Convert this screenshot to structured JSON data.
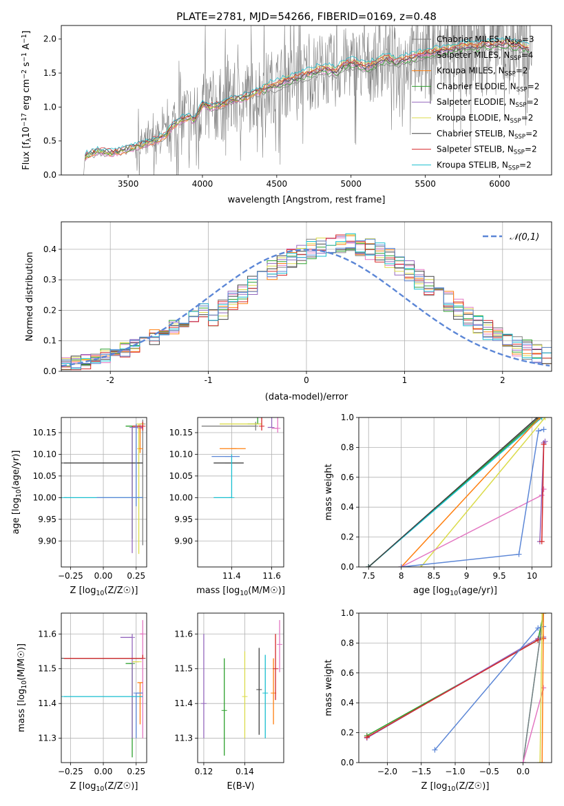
{
  "figure_title": "PLATE=2781, MJD=54266, FIBERID=0169, z=0.48",
  "series_styles": [
    {
      "name": "Chabrier MILES, N$_{SSP}$=3",
      "color": "#7f7f7f"
    },
    {
      "name": "Salpeter MILES, N$_{SSP}$=4",
      "color": "#e377c2"
    },
    {
      "name": "Kroupa MILES, N$_{SSP}$=2",
      "color": "#ff7f0e"
    },
    {
      "name": "Chabrier ELODIE, N$_{SSP}$=2",
      "color": "#2ca02c"
    },
    {
      "name": "Salpeter ELODIE, N$_{SSP}$=2",
      "color": "#9467bd"
    },
    {
      "name": "Kroupa ELODIE, N$_{SSP}$=2",
      "color": "#dbdb4a"
    },
    {
      "name": "Chabrier STELIB, N$_{SSP}$=2",
      "color": "#404040"
    },
    {
      "name": "Salpeter STELIB, N$_{SSP}$=2",
      "color": "#d62728"
    },
    {
      "name": "Kroupa STELIB, N$_{SSP}$=2",
      "color": "#17becf"
    }
  ],
  "chart_data": [
    {
      "id": "spectrum",
      "type": "line",
      "title": "PLATE=2781, MJD=54266, FIBERID=0169, z=0.48",
      "xlabel": "wavelength [Angstrom, rest frame]",
      "ylabel": "Flux [f_λ10^-17 erg cm^-2 s^-1 A^-1]",
      "xlim": [
        3050,
        6350
      ],
      "ylim": [
        0,
        2.2
      ],
      "xticks": [
        3500,
        4000,
        4500,
        5000,
        5500,
        6000
      ],
      "yticks": [
        0.0,
        0.5,
        1.0,
        1.5,
        2.0
      ],
      "legend_loc": "right",
      "legend": [
        "Chabrier MILES, N_SSP=3",
        "Salpeter MILES, N_SSP=4",
        "Kroupa MILES, N_SSP=2",
        "Chabrier ELODIE, N_SSP=2",
        "Salpeter ELODIE, N_SSP=2",
        "Kroupa ELODIE, N_SSP=2",
        "Chabrier STELIB, N_SSP=2",
        "Salpeter STELIB, N_SSP=2",
        "Kroupa STELIB, N_SSP=2"
      ],
      "model_continuum": {
        "x": [
          3200,
          3210,
          3300,
          3400,
          3500,
          3550,
          3600,
          3650,
          3700,
          3750,
          3800,
          3850,
          3900,
          3950,
          4000,
          4050,
          4100,
          4150,
          4200,
          4250,
          4300,
          4350,
          4400,
          4450,
          4500,
          4550,
          4600,
          4650,
          4700,
          4750,
          4800,
          4850,
          4900,
          4950,
          5000,
          5050,
          5100,
          5150,
          5200,
          5250,
          5300,
          5350,
          5400,
          5450,
          5500,
          5550,
          5600,
          5650,
          5700,
          5750,
          5800,
          5850,
          5900,
          5950,
          6000,
          6050,
          6100,
          6150,
          6200
        ],
        "y": [
          0.0,
          0.28,
          0.35,
          0.32,
          0.38,
          0.42,
          0.45,
          0.48,
          0.52,
          0.58,
          0.72,
          0.8,
          0.85,
          0.8,
          1.05,
          1.0,
          1.02,
          1.05,
          1.1,
          1.12,
          1.15,
          1.2,
          1.25,
          1.3,
          1.32,
          1.38,
          1.4,
          1.45,
          1.48,
          1.52,
          1.55,
          1.55,
          1.52,
          1.62,
          1.65,
          1.62,
          1.58,
          1.62,
          1.68,
          1.72,
          1.65,
          1.7,
          1.72,
          1.75,
          1.78,
          1.8,
          1.82,
          1.84,
          1.86,
          1.88,
          1.9,
          1.88,
          1.92,
          1.9,
          1.92,
          1.94,
          1.9,
          1.88,
          1.85
        ]
      }
    },
    {
      "id": "residuals",
      "type": "histogram",
      "xlabel": "(data-model)/error",
      "ylabel": "Normed distribution",
      "xlim": [
        -2.5,
        2.5
      ],
      "ylim": [
        0,
        0.49
      ],
      "xticks": [
        -2,
        -1,
        0,
        1,
        2
      ],
      "yticks": [
        0.0,
        0.1,
        0.2,
        0.3,
        0.4
      ],
      "grid": true,
      "legend_loc": "upper right",
      "reference_curve": {
        "name": "N(0,1)",
        "label": "𝒩(0,1)",
        "color": "#5b86d6"
      },
      "bin_edges_range": [
        -2.5,
        2.5
      ],
      "bin_width": 0.1,
      "series_colors": [
        "#7f7f7f",
        "#e377c2",
        "#ff7f0e",
        "#2ca02c",
        "#9467bd",
        "#dbdb4a",
        "#404040",
        "#d62728",
        "#17becf",
        "#5b86d6"
      ]
    },
    {
      "id": "age_vs_Z",
      "type": "errorbar",
      "xlabel": "Z [log10(Z/Z☉)]",
      "ylabel": "age  [log10(age/yr)]",
      "xlim": [
        -0.32,
        0.33
      ],
      "ylim": [
        9.84,
        10.185
      ],
      "xticks": [
        -0.25,
        0.0,
        0.25
      ],
      "xticklabels": [
        "−0.25",
        "0.00",
        "0.25"
      ],
      "yticks": [
        9.9,
        9.95,
        10.0,
        10.05,
        10.1,
        10.15
      ],
      "grid": true,
      "points": [
        {
          "color": "#7f7f7f",
          "x": 0.3,
          "y": 10.17,
          "xerr": [
            0.02,
            0.01
          ],
          "yerr": [
            0.28,
            0.01
          ]
        },
        {
          "color": "#e377c2",
          "x": 0.28,
          "y": 10.16,
          "xerr": [
            0.01,
            0.01
          ],
          "yerr": [
            0.01,
            0.01
          ]
        },
        {
          "color": "#ff7f0e",
          "x": 0.28,
          "y": 10.113,
          "xerr": [
            0.01,
            0.0
          ],
          "yerr": [
            0.01,
            0.05
          ]
        },
        {
          "color": "#2ca02c",
          "x": 0.22,
          "y": 10.165,
          "xerr": [
            0.05,
            0.06
          ],
          "yerr": [
            0.26,
            0.0
          ]
        },
        {
          "color": "#9467bd",
          "x": 0.22,
          "y": 10.162,
          "xerr": [
            0.0,
            0.08
          ],
          "yerr": [
            0.29,
            0.0
          ]
        },
        {
          "color": "#dbdb4a",
          "x": 0.27,
          "y": 10.17,
          "xerr": [
            0.0,
            0.04
          ],
          "yerr": [
            0.3,
            0.0
          ]
        },
        {
          "color": "#404040",
          "x": -0.3,
          "y": 10.08,
          "xerr": [
            0.0,
            0.6
          ],
          "yerr": [
            0.0,
            0.0
          ]
        },
        {
          "color": "#d62728",
          "x": 0.3,
          "y": 10.165,
          "xerr": [
            0.08,
            0.0
          ],
          "yerr": [
            0.01,
            0.01
          ]
        },
        {
          "color": "#17becf",
          "x": -0.3,
          "y": 10.0,
          "xerr": [
            0.0,
            0.6
          ],
          "yerr": [
            0.0,
            0.0
          ]
        },
        {
          "color": "#5b86d6",
          "x": 0.25,
          "y": 10.0,
          "xerr": [
            0.3,
            0.05
          ],
          "yerr": [
            0.02,
            0.17
          ]
        }
      ]
    },
    {
      "id": "age_vs_mass",
      "type": "errorbar",
      "xlabel": "mass [log10(M/M☉)]",
      "xlim": [
        11.23,
        11.66
      ],
      "ylim": [
        9.84,
        10.185
      ],
      "xticks": [
        11.4,
        11.6
      ],
      "yticks": [
        9.9,
        9.95,
        10.0,
        10.05,
        10.1,
        10.15
      ],
      "grid": true,
      "points": [
        {
          "color": "#7f7f7f",
          "x": 11.52,
          "y": 10.165,
          "xerr": [
            0.27,
            0.0
          ],
          "yerr": [
            0.01,
            0.01
          ]
        },
        {
          "color": "#e377c2",
          "x": 11.63,
          "y": 10.16,
          "xerr": [
            0.03,
            0.0
          ],
          "yerr": [
            0.01,
            0.1
          ]
        },
        {
          "color": "#ff7f0e",
          "x": 11.41,
          "y": 10.113,
          "xerr": [
            0.07,
            0.06
          ],
          "yerr": [
            0.0,
            0.0
          ]
        },
        {
          "color": "#2ca02c",
          "x": 11.53,
          "y": 10.17,
          "xerr": [
            0.05,
            0.0
          ],
          "yerr": [
            0.0,
            0.295
          ]
        },
        {
          "color": "#9467bd",
          "x": 11.6,
          "y": 10.162,
          "xerr": [
            0.02,
            0.0
          ],
          "yerr": [
            0.0,
            0.29
          ]
        },
        {
          "color": "#dbdb4a",
          "x": 11.5,
          "y": 10.17,
          "xerr": [
            0.16,
            0.05
          ],
          "yerr": [
            0.0,
            0.0
          ]
        },
        {
          "color": "#404040",
          "x": 11.38,
          "y": 10.08,
          "xerr": [
            0.07,
            0.08
          ],
          "yerr": [
            0.0,
            0.0
          ]
        },
        {
          "color": "#d62728",
          "x": 11.55,
          "y": 10.165,
          "xerr": [
            0.0,
            0.0
          ],
          "yerr": [
            0.01,
            0.26
          ]
        },
        {
          "color": "#17becf",
          "x": 11.4,
          "y": 10.0,
          "xerr": [
            0.09,
            0.0
          ],
          "yerr": [
            0.0,
            0.1
          ]
        },
        {
          "color": "#5b86d6",
          "x": 11.38,
          "y": 10.095,
          "xerr": [
            0.08,
            0.06
          ],
          "yerr": [
            0.0,
            0.0
          ]
        }
      ]
    },
    {
      "id": "weight_vs_age",
      "type": "line",
      "xlabel": "age  [log10(age/yr)]",
      "ylabel": "mass weight",
      "xlim": [
        7.35,
        10.3
      ],
      "ylim": [
        0,
        1.0
      ],
      "xticks": [
        7.5,
        8.0,
        8.5,
        9.0,
        9.5,
        10.0
      ],
      "yticks": [
        0.0,
        0.2,
        0.4,
        0.6,
        0.8,
        1.0
      ],
      "grid": true,
      "series": [
        {
          "color": "#7f7f7f",
          "x": [
            7.5,
            10.1
          ],
          "y": [
            0.0,
            1.0
          ]
        },
        {
          "color": "#2ca02c",
          "x": [
            7.5,
            10.12
          ],
          "y": [
            0.0,
            1.0
          ]
        },
        {
          "color": "#17becf",
          "x": [
            7.5,
            10.15
          ],
          "y": [
            0.0,
            1.0
          ]
        },
        {
          "color": "#404040",
          "x": [
            7.5,
            10.08
          ],
          "y": [
            0.0,
            1.0
          ]
        },
        {
          "color": "#ff7f0e",
          "x": [
            8.0,
            10.12
          ],
          "y": [
            0.0,
            1.0
          ]
        },
        {
          "color": "#dbdb4a",
          "x": [
            8.3,
            10.2
          ],
          "y": [
            0.0,
            1.0
          ]
        },
        {
          "color": "#e377c2",
          "x": [
            8.0,
            10.15,
            10.18
          ],
          "y": [
            0.0,
            0.48,
            0.52
          ]
        },
        {
          "color": "#9467bd",
          "x": [
            10.12,
            10.18,
            10.2
          ],
          "y": [
            0.17,
            0.83,
            0.84
          ]
        },
        {
          "color": "#d62728",
          "x": [
            10.15,
            10.18
          ],
          "y": [
            0.17,
            0.82
          ]
        },
        {
          "color": "#5b86d6",
          "x": [
            8.0,
            9.8,
            10.1,
            10.18
          ],
          "y": [
            0.0,
            0.085,
            0.91,
            0.92
          ]
        }
      ]
    },
    {
      "id": "mass_vs_Z",
      "type": "errorbar",
      "xlabel": "Z [log10(Z/Z☉)]",
      "ylabel": "mass [log10(M/M☉)]",
      "xlim": [
        -0.32,
        0.33
      ],
      "ylim": [
        11.23,
        11.66
      ],
      "xticks": [
        -0.25,
        0.0,
        0.25
      ],
      "xticklabels": [
        "−0.25",
        "0.00",
        "0.25"
      ],
      "yticks": [
        11.3,
        11.4,
        11.5,
        11.6
      ],
      "grid": true,
      "points": [
        {
          "color": "#7f7f7f",
          "x": 0.3,
          "y": 11.53,
          "xerr": [
            0.6,
            0.0
          ],
          "yerr": [
            0.0,
            0.01
          ]
        },
        {
          "color": "#e377c2",
          "x": 0.3,
          "y": 11.6,
          "xerr": [
            0.02,
            0.0
          ],
          "yerr": [
            0.3,
            0.04
          ]
        },
        {
          "color": "#ff7f0e",
          "x": 0.28,
          "y": 11.46,
          "xerr": [
            0.02,
            0.02
          ],
          "yerr": [
            0.12,
            0.0
          ]
        },
        {
          "color": "#2ca02c",
          "x": 0.22,
          "y": 11.515,
          "xerr": [
            0.05,
            0.0
          ],
          "yerr": [
            0.27,
            0.0
          ]
        },
        {
          "color": "#9467bd",
          "x": 0.22,
          "y": 11.59,
          "xerr": [
            0.09,
            0.0
          ],
          "yerr": [
            0.29,
            0.01
          ]
        },
        {
          "color": "#dbdb4a",
          "x": 0.27,
          "y": 11.52,
          "xerr": [
            0.05,
            0.0
          ],
          "yerr": [
            0.0,
            0.0
          ]
        },
        {
          "color": "#404040",
          "x": -0.3,
          "y": 11.53,
          "xerr": [
            0.0,
            0.6
          ],
          "yerr": [
            0.0,
            0.0
          ]
        },
        {
          "color": "#d62728",
          "x": 0.3,
          "y": 11.53,
          "xerr": [
            0.6,
            0.0
          ],
          "yerr": [
            0.0,
            0.01
          ]
        },
        {
          "color": "#17becf",
          "x": -0.3,
          "y": 11.42,
          "xerr": [
            0.0,
            0.6
          ],
          "yerr": [
            0.0,
            0.0
          ]
        },
        {
          "color": "#5b86d6",
          "x": 0.25,
          "y": 11.43,
          "xerr": [
            0.0,
            0.05
          ],
          "yerr": [
            0.13,
            0.0
          ]
        }
      ]
    },
    {
      "id": "mass_vs_ebv",
      "type": "errorbar",
      "xlabel": "E(B-V)",
      "xlim": [
        0.117,
        0.159
      ],
      "ylim": [
        11.23,
        11.66
      ],
      "xticks": [
        0.12,
        0.14
      ],
      "yticks": [
        11.3,
        11.4,
        11.5,
        11.6
      ],
      "grid": true,
      "points": [
        {
          "color": "#9467bd",
          "x": 0.12,
          "y": 11.4,
          "yerr": [
            0.1,
            0.2
          ]
        },
        {
          "color": "#2ca02c",
          "x": 0.13,
          "y": 11.38,
          "yerr": [
            0.13,
            0.15
          ]
        },
        {
          "color": "#dbdb4a",
          "x": 0.14,
          "y": 11.42,
          "yerr": [
            0.12,
            0.13
          ]
        },
        {
          "color": "#404040",
          "x": 0.147,
          "y": 11.44,
          "yerr": [
            0.13,
            0.12
          ]
        },
        {
          "color": "#17becf",
          "x": 0.15,
          "y": 11.43,
          "yerr": [
            0.13,
            0.11
          ]
        },
        {
          "color": "#ff7f0e",
          "x": 0.154,
          "y": 11.43,
          "yerr": [
            0.09,
            0.1
          ]
        },
        {
          "color": "#d62728",
          "x": 0.155,
          "y": 11.5,
          "yerr": [
            0.09,
            0.1
          ]
        },
        {
          "color": "#e377c2",
          "x": 0.157,
          "y": 11.57,
          "yerr": [
            0.08,
            0.07
          ]
        }
      ]
    },
    {
      "id": "weight_vs_Z",
      "type": "line",
      "xlabel": "Z [log10(Z/Z☉)]",
      "ylabel": "mass weight",
      "xlim": [
        -2.42,
        0.42
      ],
      "ylim": [
        0,
        1.0
      ],
      "xticks": [
        -2.0,
        -1.5,
        -1.0,
        -0.5,
        0.0
      ],
      "xticklabels": [
        "−2.0",
        "−1.5",
        "−1.0",
        "−0.5",
        "0.0"
      ],
      "yticks": [
        0.0,
        0.2,
        0.4,
        0.6,
        0.8,
        1.0
      ],
      "grid": true,
      "series": [
        {
          "color": "#2ca02c",
          "x": [
            -2.3,
            0.22,
            0.3
          ],
          "y": [
            0.18,
            0.82,
            1.0
          ]
        },
        {
          "color": "#9467bd",
          "x": [
            -2.3,
            0.22,
            0.3
          ],
          "y": [
            0.165,
            0.83,
            0.84
          ]
        },
        {
          "color": "#d62728",
          "x": [
            -2.3,
            0.22,
            0.3
          ],
          "y": [
            0.17,
            0.82,
            0.83
          ]
        },
        {
          "color": "#5b86d6",
          "x": [
            -1.3,
            0.22,
            0.3
          ],
          "y": [
            0.085,
            0.9,
            0.91
          ]
        },
        {
          "color": "#17becf",
          "x": [
            0.0,
            0.3
          ],
          "y": [
            0.0,
            1.0
          ]
        },
        {
          "color": "#7f7f7f",
          "x": [
            0.0,
            0.3
          ],
          "y": [
            0.0,
            1.0
          ]
        },
        {
          "color": "#e377c2",
          "x": [
            0.0,
            0.3
          ],
          "y": [
            0.0,
            0.5
          ]
        },
        {
          "color": "#dbdb4a",
          "x": [
            0.25,
            0.28
          ],
          "y": [
            0.0,
            1.0
          ]
        },
        {
          "color": "#ff7f0e",
          "x": [
            0.28,
            0.3
          ],
          "y": [
            0.0,
            1.0
          ]
        }
      ]
    }
  ]
}
